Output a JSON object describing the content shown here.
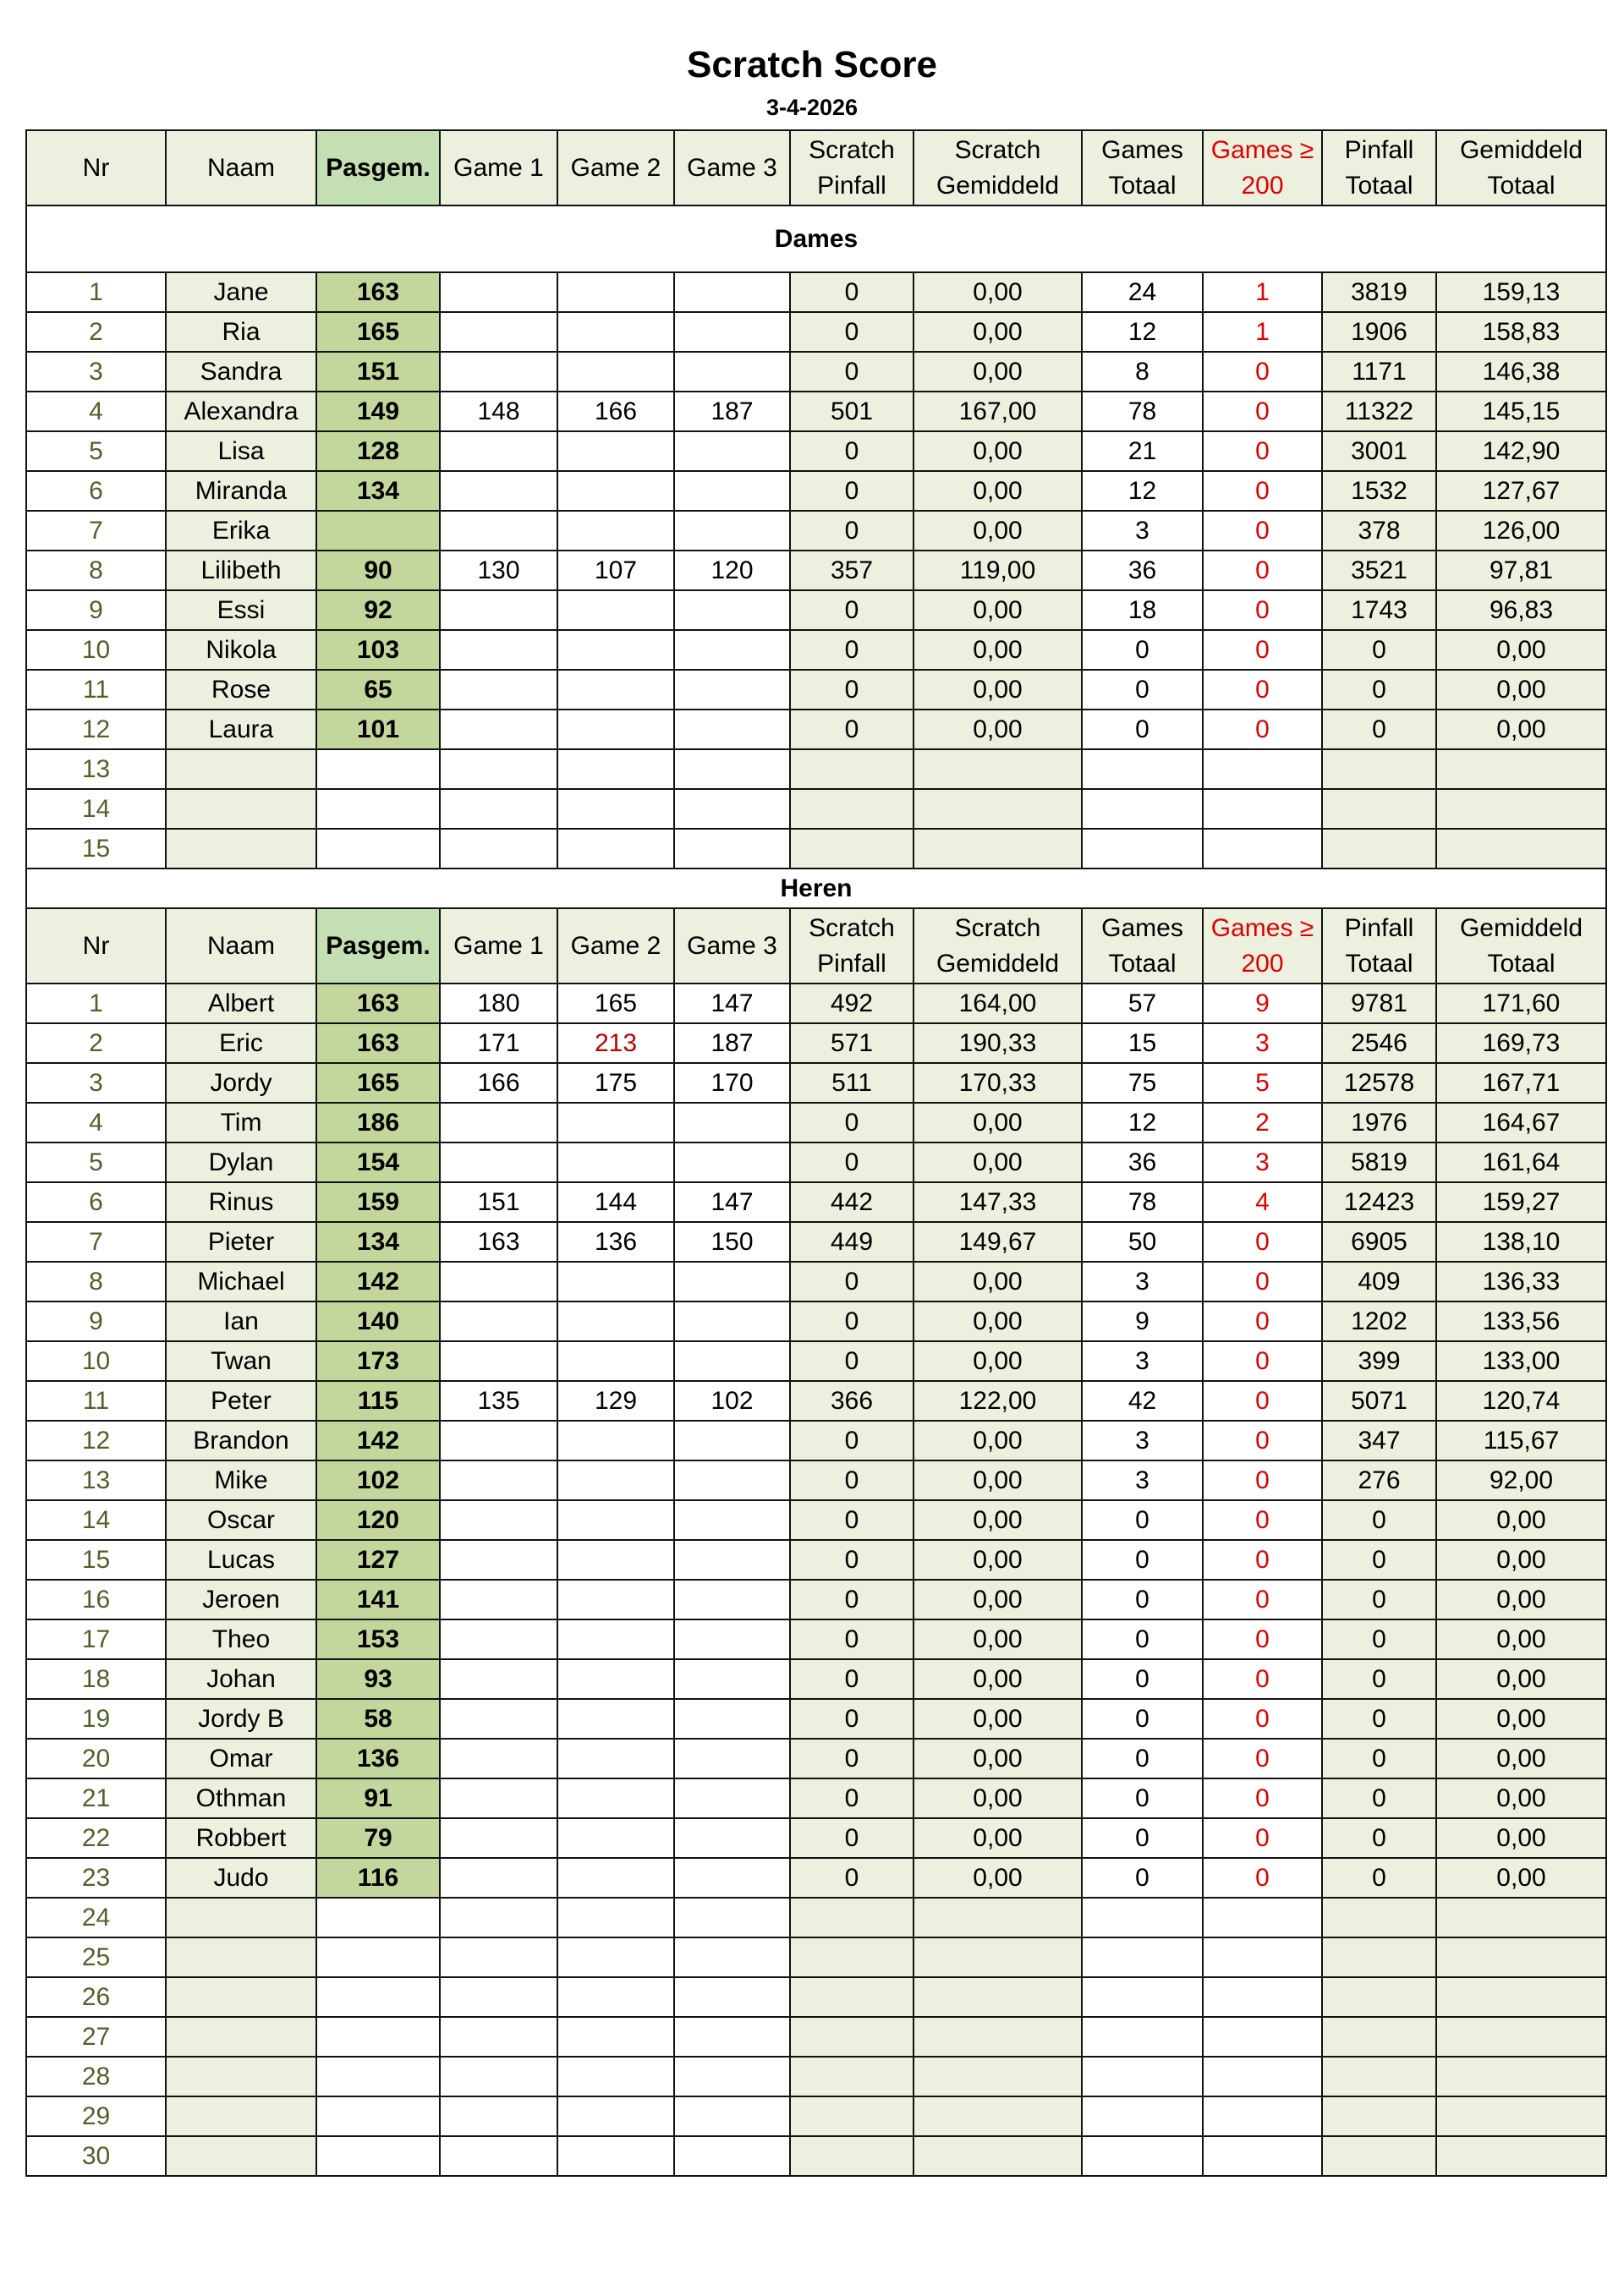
{
  "title": "Scratch Score",
  "date": "3-4-2026",
  "headers": [
    "Nr",
    "Naam",
    "Pasgem.",
    "Game 1",
    "Game 2",
    "Game 3",
    "Scratch Pinfall",
    "Scratch Gemiddeld",
    "Games Totaal",
    "Games ≥ 200",
    "Pinfall Totaal",
    "Gemiddeld Totaal"
  ],
  "colors": {
    "light_green": "#ebf1de",
    "pasgem_green": "#c3d69b",
    "header_pasgem": "#c4dfb3",
    "nr_text": "#4f6228",
    "red": "#e00000",
    "high_game": "#c00000"
  },
  "sections": [
    {
      "label": "Dames",
      "rows": [
        [
          "1",
          "Jane",
          "163",
          "",
          "",
          "",
          "0",
          "0,00",
          "24",
          "1",
          "3819",
          "159,13"
        ],
        [
          "2",
          "Ria",
          "165",
          "",
          "",
          "",
          "0",
          "0,00",
          "12",
          "1",
          "1906",
          "158,83"
        ],
        [
          "3",
          "Sandra",
          "151",
          "",
          "",
          "",
          "0",
          "0,00",
          "8",
          "0",
          "1171",
          "146,38"
        ],
        [
          "4",
          "Alexandra",
          "149",
          "148",
          "166",
          "187",
          "501",
          "167,00",
          "78",
          "0",
          "11322",
          "145,15"
        ],
        [
          "5",
          "Lisa",
          "128",
          "",
          "",
          "",
          "0",
          "0,00",
          "21",
          "0",
          "3001",
          "142,90"
        ],
        [
          "6",
          "Miranda",
          "134",
          "",
          "",
          "",
          "0",
          "0,00",
          "12",
          "0",
          "1532",
          "127,67"
        ],
        [
          "7",
          "Erika",
          "",
          "",
          "",
          "",
          "0",
          "0,00",
          "3",
          "0",
          "378",
          "126,00"
        ],
        [
          "8",
          "Lilibeth",
          "90",
          "130",
          "107",
          "120",
          "357",
          "119,00",
          "36",
          "0",
          "3521",
          "97,81"
        ],
        [
          "9",
          "Essi",
          "92",
          "",
          "",
          "",
          "0",
          "0,00",
          "18",
          "0",
          "1743",
          "96,83"
        ],
        [
          "10",
          "Nikola",
          "103",
          "",
          "",
          "",
          "0",
          "0,00",
          "0",
          "0",
          "0",
          "0,00"
        ],
        [
          "11",
          "Rose",
          "65",
          "",
          "",
          "",
          "0",
          "0,00",
          "0",
          "0",
          "0",
          "0,00"
        ],
        [
          "12",
          "Laura",
          "101",
          "",
          "",
          "",
          "0",
          "0,00",
          "0",
          "0",
          "0",
          "0,00"
        ],
        [
          "13",
          "",
          "",
          "",
          "",
          "",
          "",
          "",
          "",
          "",
          "",
          ""
        ],
        [
          "14",
          "",
          "",
          "",
          "",
          "",
          "",
          "",
          "",
          "",
          "",
          ""
        ],
        [
          "15",
          "",
          "",
          "",
          "",
          "",
          "",
          "",
          "",
          "",
          "",
          ""
        ]
      ]
    },
    {
      "label": "Heren",
      "rows": [
        [
          "1",
          "Albert",
          "163",
          "180",
          "165",
          "147",
          "492",
          "164,00",
          "57",
          "9",
          "9781",
          "171,60"
        ],
        [
          "2",
          "Eric",
          "163",
          "171",
          "213",
          "187",
          "571",
          "190,33",
          "15",
          "3",
          "2546",
          "169,73"
        ],
        [
          "3",
          "Jordy",
          "165",
          "166",
          "175",
          "170",
          "511",
          "170,33",
          "75",
          "5",
          "12578",
          "167,71"
        ],
        [
          "4",
          "Tim",
          "186",
          "",
          "",
          "",
          "0",
          "0,00",
          "12",
          "2",
          "1976",
          "164,67"
        ],
        [
          "5",
          "Dylan",
          "154",
          "",
          "",
          "",
          "0",
          "0,00",
          "36",
          "3",
          "5819",
          "161,64"
        ],
        [
          "6",
          "Rinus",
          "159",
          "151",
          "144",
          "147",
          "442",
          "147,33",
          "78",
          "4",
          "12423",
          "159,27"
        ],
        [
          "7",
          "Pieter",
          "134",
          "163",
          "136",
          "150",
          "449",
          "149,67",
          "50",
          "0",
          "6905",
          "138,10"
        ],
        [
          "8",
          "Michael",
          "142",
          "",
          "",
          "",
          "0",
          "0,00",
          "3",
          "0",
          "409",
          "136,33"
        ],
        [
          "9",
          "Ian",
          "140",
          "",
          "",
          "",
          "0",
          "0,00",
          "9",
          "0",
          "1202",
          "133,56"
        ],
        [
          "10",
          "Twan",
          "173",
          "",
          "",
          "",
          "0",
          "0,00",
          "3",
          "0",
          "399",
          "133,00"
        ],
        [
          "11",
          "Peter",
          "115",
          "135",
          "129",
          "102",
          "366",
          "122,00",
          "42",
          "0",
          "5071",
          "120,74"
        ],
        [
          "12",
          "Brandon",
          "142",
          "",
          "",
          "",
          "0",
          "0,00",
          "3",
          "0",
          "347",
          "115,67"
        ],
        [
          "13",
          "Mike",
          "102",
          "",
          "",
          "",
          "0",
          "0,00",
          "3",
          "0",
          "276",
          "92,00"
        ],
        [
          "14",
          "Oscar",
          "120",
          "",
          "",
          "",
          "0",
          "0,00",
          "0",
          "0",
          "0",
          "0,00"
        ],
        [
          "15",
          "Lucas",
          "127",
          "",
          "",
          "",
          "0",
          "0,00",
          "0",
          "0",
          "0",
          "0,00"
        ],
        [
          "16",
          "Jeroen",
          "141",
          "",
          "",
          "",
          "0",
          "0,00",
          "0",
          "0",
          "0",
          "0,00"
        ],
        [
          "17",
          "Theo",
          "153",
          "",
          "",
          "",
          "0",
          "0,00",
          "0",
          "0",
          "0",
          "0,00"
        ],
        [
          "18",
          "Johan",
          "93",
          "",
          "",
          "",
          "0",
          "0,00",
          "0",
          "0",
          "0",
          "0,00"
        ],
        [
          "19",
          "Jordy B",
          "58",
          "",
          "",
          "",
          "0",
          "0,00",
          "0",
          "0",
          "0",
          "0,00"
        ],
        [
          "20",
          "Omar",
          "136",
          "",
          "",
          "",
          "0",
          "0,00",
          "0",
          "0",
          "0",
          "0,00"
        ],
        [
          "21",
          "Othman",
          "91",
          "",
          "",
          "",
          "0",
          "0,00",
          "0",
          "0",
          "0",
          "0,00"
        ],
        [
          "22",
          "Robbert",
          "79",
          "",
          "",
          "",
          "0",
          "0,00",
          "0",
          "0",
          "0",
          "0,00"
        ],
        [
          "23",
          "Judo",
          "116",
          "",
          "",
          "",
          "0",
          "0,00",
          "0",
          "0",
          "0",
          "0,00"
        ],
        [
          "24",
          "",
          "",
          "",
          "",
          "",
          "",
          "",
          "",
          "",
          "",
          ""
        ],
        [
          "25",
          "",
          "",
          "",
          "",
          "",
          "",
          "",
          "",
          "",
          "",
          ""
        ],
        [
          "26",
          "",
          "",
          "",
          "",
          "",
          "",
          "",
          "",
          "",
          "",
          ""
        ],
        [
          "27",
          "",
          "",
          "",
          "",
          "",
          "",
          "",
          "",
          "",
          "",
          ""
        ],
        [
          "28",
          "",
          "",
          "",
          "",
          "",
          "",
          "",
          "",
          "",
          "",
          ""
        ],
        [
          "29",
          "",
          "",
          "",
          "",
          "",
          "",
          "",
          "",
          "",
          "",
          ""
        ],
        [
          "30",
          "",
          "",
          "",
          "",
          "",
          "",
          "",
          "",
          "",
          "",
          ""
        ]
      ]
    }
  ]
}
